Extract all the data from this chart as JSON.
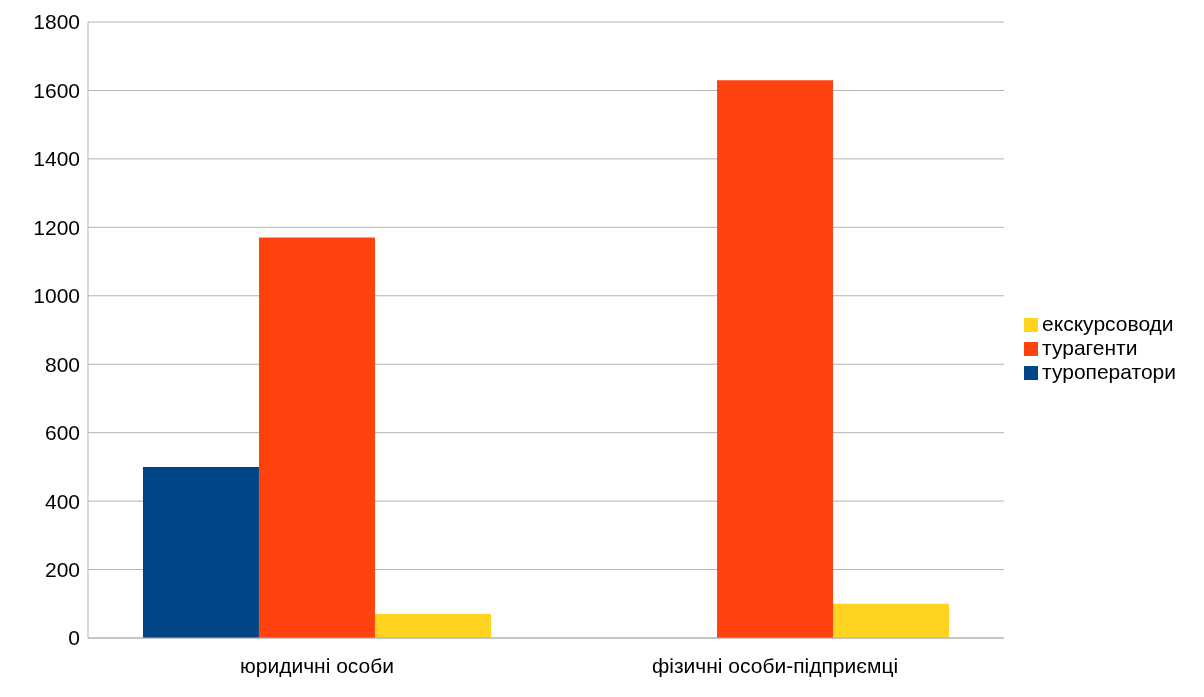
{
  "chart_data": {
    "type": "bar",
    "categories": [
      "юридичні особи",
      "фізичні особи-підприємці"
    ],
    "series": [
      {
        "name": "туроператори",
        "color": "#004586",
        "values": [
          500,
          0
        ]
      },
      {
        "name": "турагенти",
        "color": "#ff420e",
        "values": [
          1170,
          1630
        ]
      },
      {
        "name": "екскурсоводи",
        "color": "#ffd320",
        "values": [
          70,
          100
        ]
      }
    ],
    "ylim": [
      0,
      1800
    ],
    "yticks": [
      0,
      200,
      400,
      600,
      800,
      1000,
      1200,
      1400,
      1600,
      1800
    ],
    "grid": "y",
    "legend": "right"
  }
}
